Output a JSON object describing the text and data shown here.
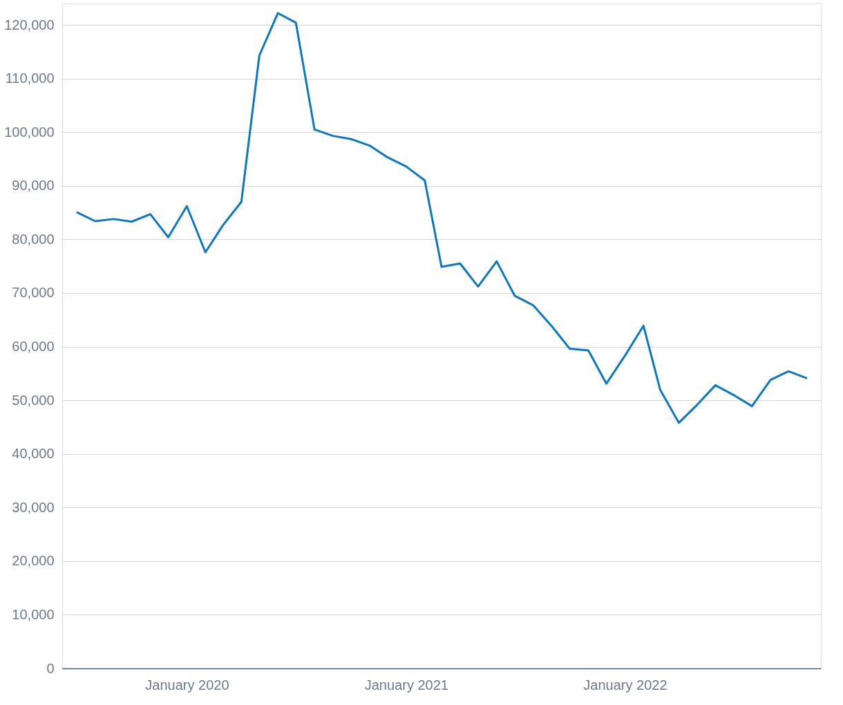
{
  "chart_data": {
    "type": "line",
    "x": [
      "2019-07",
      "2019-08",
      "2019-09",
      "2019-10",
      "2019-11",
      "2019-12",
      "2020-01",
      "2020-02",
      "2020-03",
      "2020-04",
      "2020-05",
      "2020-06",
      "2020-07",
      "2020-08",
      "2020-09",
      "2020-10",
      "2020-11",
      "2020-12",
      "2021-01",
      "2021-02",
      "2021-03",
      "2021-04",
      "2021-05",
      "2021-06",
      "2021-07",
      "2021-08",
      "2021-09",
      "2021-10",
      "2021-11",
      "2021-12",
      "2022-01",
      "2022-02",
      "2022-03",
      "2022-04",
      "2022-05",
      "2022-06",
      "2022-07",
      "2022-08",
      "2022-09",
      "2022-10",
      "2022-11"
    ],
    "series": [
      {
        "color": "#0a78c2",
        "values": [
          85100,
          83400,
          83800,
          83300,
          84700,
          80400,
          86200,
          77600,
          82600,
          87000,
          114300,
          122200,
          120400,
          100500,
          99300,
          98700,
          97500,
          95300,
          93600,
          91000,
          74900,
          75500,
          71200,
          75900,
          69500,
          67700,
          63800,
          59600,
          59300,
          53100,
          58300,
          63900,
          51900,
          45800,
          49100,
          52800,
          51000,
          48900,
          53800,
          55400,
          54100
        ]
      }
    ],
    "xlim": [
      "2019-06-07",
      "2022-11-24"
    ],
    "xticks": [
      {
        "value": "2020-01",
        "label": "January 2020"
      },
      {
        "value": "2021-01",
        "label": "January 2021"
      },
      {
        "value": "2022-01",
        "label": "January 2022"
      }
    ],
    "ylim": [
      0,
      124000
    ],
    "yticks": [
      0,
      {
        "value": 10000,
        "label": "10,000"
      },
      {
        "value": 20000,
        "label": "20,000"
      },
      {
        "value": 30000,
        "label": "30,000"
      },
      {
        "value": 40000,
        "label": "40,000"
      },
      {
        "value": 50000,
        "label": "50,000"
      },
      {
        "value": 60000,
        "label": "60,000"
      },
      {
        "value": 70000,
        "label": "70,000"
      },
      {
        "value": 80000,
        "label": "80,000"
      },
      {
        "value": 90000,
        "label": "90,000"
      },
      {
        "value": 100000,
        "label": "100,000"
      },
      {
        "value": 110000,
        "label": "110,000"
      },
      {
        "value": 120000,
        "label": "120,000"
      }
    ],
    "grid": "y",
    "marker": "none",
    "line_style": "solid"
  }
}
